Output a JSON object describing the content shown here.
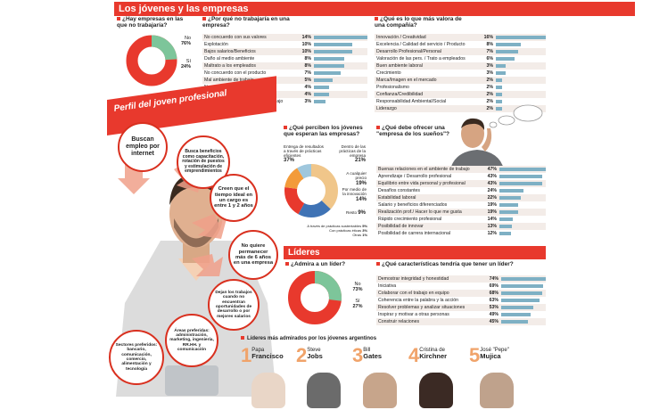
{
  "header": {
    "title": "Los jóvenes y las empresas"
  },
  "q1": {
    "title": "¿Hay empresas en las que no trabajaría?",
    "answers": [
      {
        "label": "No",
        "pct": "76%"
      },
      {
        "label": "Sí",
        "pct": "24%"
      }
    ]
  },
  "q2": {
    "title": "¿Por qué no trabajaría en una empresa?",
    "rows": [
      {
        "label": "No concuerdo con sus valores",
        "pct": "14%",
        "v": 14
      },
      {
        "label": "Explotación",
        "pct": "10%",
        "v": 10
      },
      {
        "label": "Bajos salarios/Beneficios",
        "pct": "10%",
        "v": 10
      },
      {
        "label": "Daño al medio ambiente",
        "pct": "8%",
        "v": 8
      },
      {
        "label": "Maltrato a los empleados",
        "pct": "8%",
        "v": 8
      },
      {
        "label": "No concuerdo con el producto",
        "pct": "7%",
        "v": 7
      },
      {
        "label": "Mal ambiente de trabajo",
        "pct": "5%",
        "v": 5
      },
      {
        "label": "No me interesa la industria",
        "pct": "4%",
        "v": 4
      },
      {
        "label": "Mala reputación / Referencias",
        "pct": "4%",
        "v": 4
      },
      {
        "label": "No concuerdo con su forma de trabajo",
        "pct": "3%",
        "v": 3
      }
    ]
  },
  "q3": {
    "title": "¿Qué es lo que más valora de una compañía?",
    "rows": [
      {
        "label": "Innovación / Creatividad",
        "pct": "16%",
        "v": 16
      },
      {
        "label": "Excelencia / Calidad del servicio / Producto",
        "pct": "8%",
        "v": 8
      },
      {
        "label": "Desarrollo Profesional/Personal",
        "pct": "7%",
        "v": 7
      },
      {
        "label": "Valoración de las pers. / Trato a empleados",
        "pct": "6%",
        "v": 6
      },
      {
        "label": "Buen ambiente laboral",
        "pct": "3%",
        "v": 3
      },
      {
        "label": "Crecimiento",
        "pct": "3%",
        "v": 3
      },
      {
        "label": "Marca/Imagen en el mercado",
        "pct": "2%",
        "v": 2
      },
      {
        "label": "Profesionalismo",
        "pct": "2%",
        "v": 2
      },
      {
        "label": "Confianza/Credibilidad",
        "pct": "2%",
        "v": 2
      },
      {
        "label": "Responsabilidad Ambiental/Social",
        "pct": "2%",
        "v": 2
      },
      {
        "label": "Liderazgo",
        "pct": "2%",
        "v": 2
      }
    ]
  },
  "perfil": {
    "title": "Perfil del joven profesional",
    "items": [
      "Buscan empleo por internet",
      "Busca beneficios como capacitación, rotación de puestos y estimulación de emprendimientos",
      "Creen que el tiempo ideal en un cargo es entre 1 y 2 años",
      "No quiere permanecer más de 6 años en una empresa",
      "Dejan los trabajos cuando no encuentran oportunidades de desarrollo o por mejores salarios",
      "Áreas preferidas: administración, marketing, ingeniería, RR.HH. y comunicación",
      "Sectores preferidos: bancario, comunicación, comercio, alimentación y tecnología"
    ]
  },
  "q4": {
    "title": "¿Qué perciben los jóvenes que esperan las empresas?",
    "labels": [
      {
        "text": "Entrega de resultados a través de prácticas eficientes",
        "pct": "37%"
      },
      {
        "text": "Dentro de las prácticas de la empresa",
        "pct": "21%"
      },
      {
        "text": "A cualquier precio",
        "pct": "19%"
      },
      {
        "text": "Por medio de la innovación",
        "pct": "14%"
      },
      {
        "text": "Resto",
        "pct": "9%"
      },
      {
        "text": "A través de prácticas sustentables",
        "pct": "5%"
      },
      {
        "text": "Con prácticas éticas",
        "pct": "3%"
      },
      {
        "text": "Otras",
        "pct": "1%"
      }
    ]
  },
  "q5": {
    "title": "¿Qué debe ofrecer una \"empresa de los sueños\"?",
    "rows": [
      {
        "label": "Buenas relaciones en el ambiente de trabajo",
        "pct": "47%",
        "v": 47
      },
      {
        "label": "Aprendizaje / Desarrollo profesional",
        "pct": "43%",
        "v": 43
      },
      {
        "label": "Equilibrio entre vida personal y profesional",
        "pct": "43%",
        "v": 43
      },
      {
        "label": "Desafíos constantes",
        "pct": "24%",
        "v": 24
      },
      {
        "label": "Estabilidad laboral",
        "pct": "22%",
        "v": 22
      },
      {
        "label": "Salario y beneficios diferenciados",
        "pct": "19%",
        "v": 19
      },
      {
        "label": "Realización prof./ Hacer lo que me gusta",
        "pct": "19%",
        "v": 19
      },
      {
        "label": "Rápido crecimiento profesional",
        "pct": "14%",
        "v": 14
      },
      {
        "label": "Posibilidad de innovar",
        "pct": "13%",
        "v": 13
      },
      {
        "label": "Posibilidad de carrera internacional",
        "pct": "12%",
        "v": 12
      }
    ]
  },
  "lideres": {
    "title": "Líderes",
    "q6": {
      "title": "¿Admira a un líder?",
      "answers": [
        {
          "label": "No",
          "pct": "73%"
        },
        {
          "label": "Sí",
          "pct": "27%"
        }
      ]
    },
    "q7": {
      "title": "¿Qué características tendría que tener un líder?",
      "rows": [
        {
          "label": "Demostrar integridad y honestidad",
          "pct": "74%",
          "v": 74
        },
        {
          "label": "Iniciativa",
          "pct": "69%",
          "v": 69
        },
        {
          "label": "Colaborar con el trabajo en equipo",
          "pct": "68%",
          "v": 68
        },
        {
          "label": "Coherencia entre la palabra y la acción",
          "pct": "63%",
          "v": 63
        },
        {
          "label": "Resolver problemas y analizar situaciones",
          "pct": "53%",
          "v": 53
        },
        {
          "label": "Inspirar y motivar a otras personas",
          "pct": "49%",
          "v": 49
        },
        {
          "label": "Construir relaciones",
          "pct": "45%",
          "v": 45
        }
      ]
    },
    "ranking_title": "Líderes más admirados por los jóvenes argentinos",
    "ranking": [
      {
        "n": "1",
        "first": "Papa",
        "last": "Francisco"
      },
      {
        "n": "2",
        "first": "Steve",
        "last": "Jobs"
      },
      {
        "n": "3",
        "first": "Bill",
        "last": "Gates"
      },
      {
        "n": "4",
        "first": "Cristina de",
        "last": "Kirchner"
      },
      {
        "n": "5",
        "first": "José \"Pepe\"",
        "last": "Mujica"
      }
    ]
  },
  "colors": {
    "red": "#e8392d",
    "green": "#7dc59a",
    "bar": "#7eb0c4",
    "orange": "#f0a36a"
  }
}
